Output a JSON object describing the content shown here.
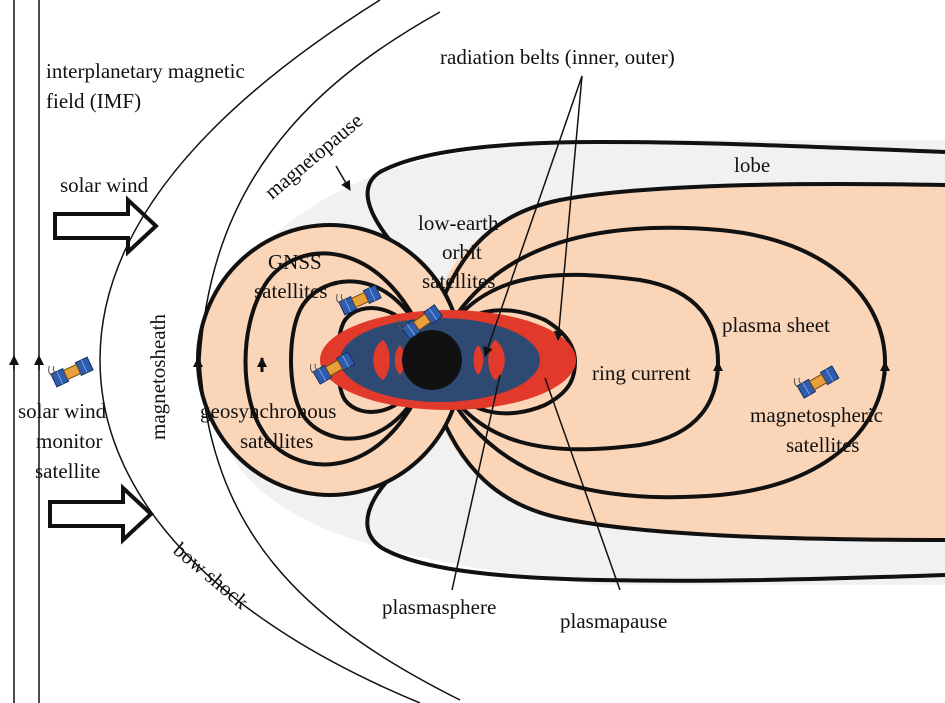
{
  "labels": {
    "imf_line1": "interplanetary magnetic",
    "imf_line2": "field (IMF)",
    "solar_wind": "solar wind",
    "magnetopause": "magnetopause",
    "magnetosheath": "magnetosheath",
    "bow_shock": "bow shock",
    "sw_monitor_line1": "solar wind",
    "sw_monitor_line2": "monitor",
    "sw_monitor_line3": "satellite",
    "radiation_belts": "radiation belts (inner, outer)",
    "lobe": "lobe",
    "leo_line1": "low-earth",
    "leo_line2": "orbit",
    "leo_line3": "satellites",
    "gnss_line1": "GNSS",
    "gnss_line2": "satellites",
    "plasma_sheet": "plasma sheet",
    "ring_current": "ring current",
    "geo_line1": "geosynchronous",
    "geo_line2": "satellites",
    "msat_line1": "magnetospheric",
    "msat_line2": "satellites",
    "plasmasphere": "plasmasphere",
    "plasmapause": "plasmapause"
  },
  "colors": {
    "plasma_fill": "#fbd5b8",
    "lobe_fill": "#f0f0f0",
    "radiation_belt": "#e23a2a",
    "plasmasphere": "#2f4a72",
    "earth": "#111111",
    "line": "#111111"
  }
}
